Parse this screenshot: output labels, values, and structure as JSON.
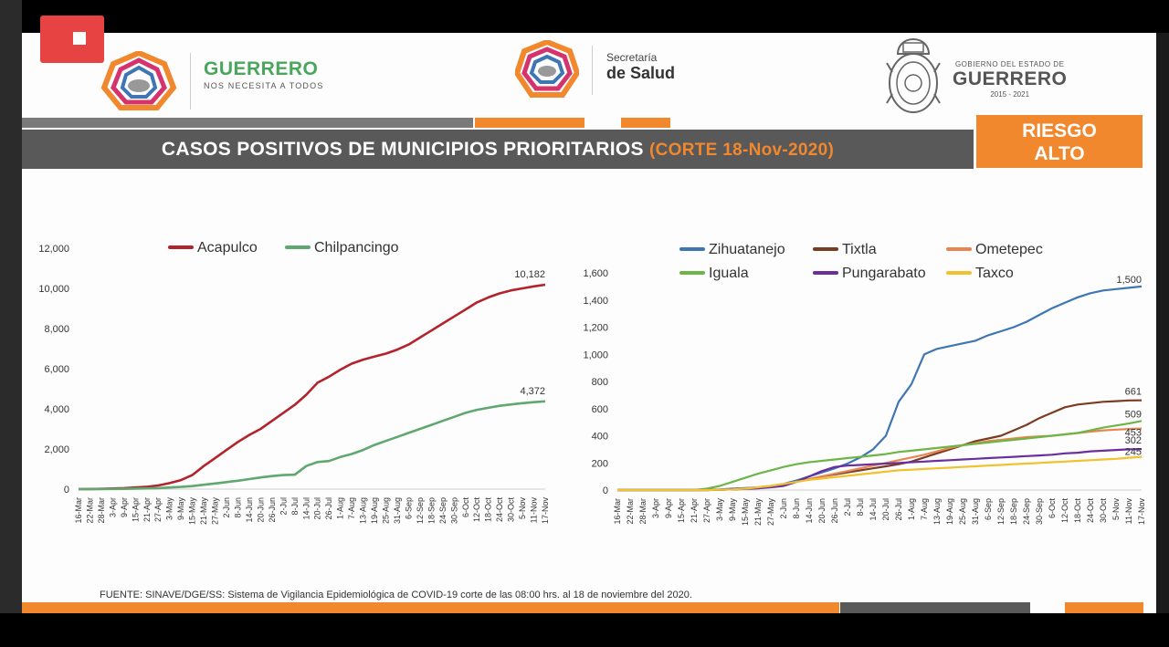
{
  "header": {
    "brand_title": "GUERRERO",
    "brand_subtitle": "NOS NECESITA A TODOS",
    "secretaria_line1": "Secretaría",
    "secretaria_line2": "de Salud",
    "gobierno_line1": "GOBIERNO DEL ESTADO DE",
    "gobierno_line2": "GUERRERO",
    "gobierno_line3": "2015 - 2021"
  },
  "title": {
    "main": "CASOS POSITIVOS DE MUNICIPIOS PRIORITARIOS",
    "corte": "(CORTE 18-Nov-2020)"
  },
  "risk": {
    "line1": "RIESGO",
    "line2": "ALTO"
  },
  "footer": {
    "source": "FUENTE: SINAVE/DGE/SS: Sistema de Vigilancia Epidemiológica de COVID-19 corte de las 08:00 hrs. al 18  de noviembre del 2020."
  },
  "colors": {
    "orange": "#f2882e",
    "dark_gray": "#595959",
    "acapulco": "#b3232b",
    "chilpancingo": "#5fa86f",
    "zihuatanejo": "#3e76b3",
    "tixtla": "#7a3c22",
    "ometepec": "#e88551",
    "iguala": "#6db547",
    "pungarabato": "#6a2f9c",
    "taxco": "#f2c12e"
  },
  "chart_data": [
    {
      "type": "line",
      "title": "",
      "xlabel": "",
      "ylabel": "",
      "ylim": [
        0,
        12000
      ],
      "yticks": [
        "0",
        "2,000",
        "4,000",
        "6,000",
        "8,000",
        "10,000",
        "12,000"
      ],
      "legend": "top",
      "categories": [
        "16-Mar",
        "22-Mar",
        "28-Mar",
        "3-Apr",
        "9-Apr",
        "15-Apr",
        "21-Apr",
        "27-Apr",
        "3-May",
        "9-May",
        "15-May",
        "21-May",
        "27-May",
        "2-Jun",
        "8-Jun",
        "14-Jun",
        "20-Jun",
        "26-Jun",
        "2-Jul",
        "8-Jul",
        "14-Jul",
        "20-Jul",
        "26-Jul",
        "1-Aug",
        "7-Aug",
        "13-Aug",
        "19-Aug",
        "25-Aug",
        "31-Aug",
        "6-Sep",
        "12-Sep",
        "18-Sep",
        "24-Sep",
        "30-Sep",
        "6-Oct",
        "12-Oct",
        "18-Oct",
        "24-Oct",
        "30-Oct",
        "5-Nov",
        "11-Nov",
        "17-Nov"
      ],
      "series": [
        {
          "name": "Acapulco",
          "color": "#b3232b",
          "end_label": "10,182",
          "values": [
            0,
            5,
            15,
            30,
            50,
            80,
            120,
            180,
            300,
            450,
            700,
            1150,
            1550,
            1950,
            2350,
            2700,
            3000,
            3400,
            3800,
            4200,
            4700,
            5300,
            5600,
            5950,
            6250,
            6450,
            6600,
            6750,
            6950,
            7200,
            7550,
            7900,
            8250,
            8600,
            8950,
            9300,
            9550,
            9750,
            9900,
            10000,
            10100,
            10182
          ]
        },
        {
          "name": "Chilpancingo",
          "color": "#5fa86f",
          "end_label": "4,372",
          "values": [
            0,
            2,
            5,
            10,
            15,
            25,
            35,
            50,
            80,
            110,
            150,
            220,
            280,
            350,
            420,
            500,
            580,
            650,
            700,
            720,
            1150,
            1350,
            1400,
            1600,
            1750,
            1950,
            2200,
            2400,
            2600,
            2800,
            3000,
            3200,
            3400,
            3600,
            3800,
            3950,
            4050,
            4150,
            4220,
            4280,
            4330,
            4372
          ]
        }
      ]
    },
    {
      "type": "line",
      "title": "",
      "xlabel": "",
      "ylabel": "",
      "ylim": [
        0,
        1600
      ],
      "yticks": [
        "0",
        "200",
        "400",
        "600",
        "800",
        "1,000",
        "1,200",
        "1,400",
        "1,600"
      ],
      "legend": "top",
      "categories": [
        "16-Mar",
        "22-Mar",
        "28-Mar",
        "3-Apr",
        "9-Apr",
        "15-Apr",
        "21-Apr",
        "27-Apr",
        "3-May",
        "9-May",
        "15-May",
        "21-May",
        "27-May",
        "2-Jun",
        "8-Jun",
        "14-Jun",
        "20-Jun",
        "26-Jun",
        "2-Jul",
        "8-Jul",
        "14-Jul",
        "20-Jul",
        "26-Jul",
        "1-Aug",
        "7-Aug",
        "13-Aug",
        "19-Aug",
        "25-Aug",
        "31-Aug",
        "6-Sep",
        "12-Sep",
        "18-Sep",
        "24-Sep",
        "30-Sep",
        "6-Oct",
        "12-Oct",
        "18-Oct",
        "24-Oct",
        "30-Oct",
        "5-Nov",
        "11-Nov",
        "17-Nov"
      ],
      "series": [
        {
          "name": "Zihuatanejo",
          "color": "#3e76b3",
          "end_label": "1,500",
          "values": [
            0,
            0,
            0,
            0,
            0,
            0,
            0,
            2,
            5,
            10,
            15,
            20,
            30,
            45,
            70,
            100,
            130,
            160,
            195,
            240,
            300,
            400,
            650,
            780,
            1000,
            1040,
            1060,
            1080,
            1100,
            1140,
            1170,
            1200,
            1240,
            1290,
            1340,
            1380,
            1420,
            1450,
            1470,
            1480,
            1490,
            1500
          ]
        },
        {
          "name": "Tixtla",
          "color": "#7a3c22",
          "end_label": "661",
          "values": [
            0,
            0,
            0,
            0,
            0,
            0,
            0,
            0,
            2,
            5,
            10,
            15,
            25,
            40,
            60,
            80,
            100,
            115,
            130,
            145,
            160,
            175,
            190,
            210,
            240,
            270,
            300,
            330,
            360,
            380,
            400,
            440,
            480,
            530,
            570,
            610,
            630,
            640,
            650,
            655,
            660,
            661
          ]
        },
        {
          "name": "Ometepec",
          "color": "#e88551",
          "end_label": "453",
          "values": [
            0,
            0,
            0,
            0,
            0,
            0,
            0,
            0,
            2,
            5,
            10,
            15,
            25,
            40,
            60,
            80,
            100,
            120,
            140,
            160,
            180,
            200,
            220,
            240,
            260,
            285,
            310,
            330,
            345,
            360,
            370,
            380,
            390,
            395,
            400,
            410,
            420,
            430,
            440,
            445,
            450,
            453
          ]
        },
        {
          "name": "Iguala",
          "color": "#6db547",
          "end_label": "509",
          "values": [
            0,
            0,
            0,
            0,
            0,
            0,
            0,
            10,
            30,
            60,
            90,
            120,
            145,
            170,
            190,
            205,
            215,
            225,
            235,
            245,
            255,
            265,
            280,
            290,
            300,
            310,
            320,
            330,
            340,
            350,
            360,
            370,
            380,
            390,
            400,
            410,
            420,
            440,
            460,
            475,
            490,
            509
          ]
        },
        {
          "name": "Pungarabato",
          "color": "#6a2f9c",
          "end_label": "302",
          "values": [
            0,
            0,
            0,
            0,
            0,
            0,
            0,
            0,
            2,
            5,
            8,
            12,
            20,
            30,
            60,
            100,
            140,
            170,
            180,
            185,
            190,
            195,
            200,
            205,
            210,
            215,
            220,
            225,
            230,
            235,
            240,
            245,
            250,
            255,
            260,
            270,
            275,
            285,
            290,
            295,
            300,
            302
          ]
        },
        {
          "name": "Taxco",
          "color": "#f2c12e",
          "end_label": "245",
          "values": [
            0,
            0,
            0,
            0,
            0,
            0,
            0,
            0,
            2,
            5,
            10,
            20,
            30,
            45,
            60,
            75,
            85,
            95,
            105,
            115,
            125,
            135,
            145,
            150,
            155,
            160,
            165,
            170,
            175,
            180,
            185,
            190,
            195,
            200,
            205,
            210,
            215,
            220,
            225,
            230,
            238,
            245
          ]
        }
      ]
    }
  ]
}
